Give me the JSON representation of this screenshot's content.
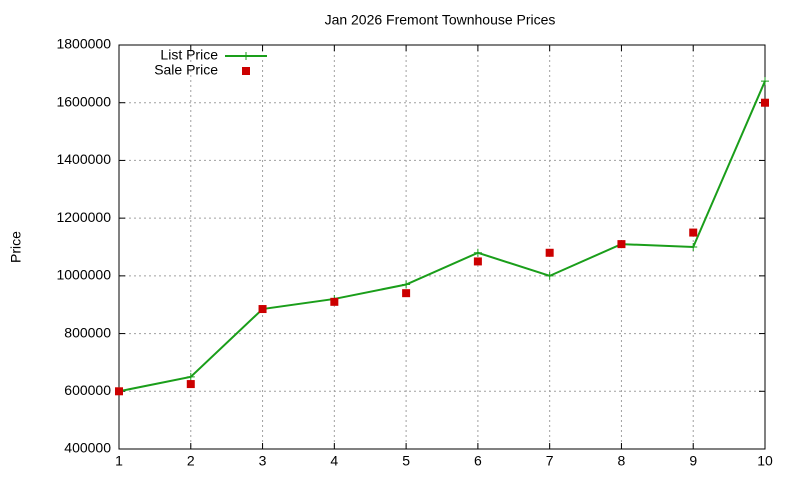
{
  "chart_data": {
    "type": "line",
    "title": "Jan 2026 Fremont Townhouse Prices",
    "y_label": "Price",
    "x": [
      1,
      2,
      3,
      4,
      5,
      6,
      7,
      8,
      9,
      10
    ],
    "series": [
      {
        "name": "List Price",
        "color": "#1a9e1a",
        "style": "line",
        "values": [
          600000,
          650000,
          885000,
          920000,
          970000,
          1080000,
          1000000,
          1110000,
          1100000,
          1675000
        ]
      },
      {
        "name": "Sale Price",
        "color": "#cc0000",
        "style": "points",
        "values": [
          600000,
          625000,
          885000,
          910000,
          940000,
          1050000,
          1080000,
          1110000,
          1150000,
          1600000
        ]
      }
    ],
    "xlim": [
      1,
      10
    ],
    "xticks": [
      1,
      2,
      3,
      4,
      5,
      6,
      7,
      8,
      9,
      10
    ],
    "ylim": [
      400000,
      1800000
    ],
    "yticks": [
      400000,
      600000,
      800000,
      1000000,
      1200000,
      1400000,
      1600000,
      1800000
    ],
    "grid": true,
    "legend": "top-left"
  }
}
